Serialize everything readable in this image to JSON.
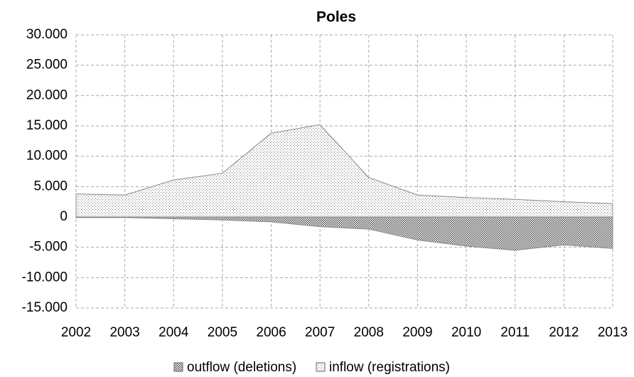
{
  "chart_data": {
    "type": "area",
    "title": "Poles",
    "categories": [
      "2002",
      "2003",
      "2004",
      "2005",
      "2006",
      "2007",
      "2008",
      "2009",
      "2010",
      "2011",
      "2012",
      "2013"
    ],
    "series": [
      {
        "name": "outflow (deletions)",
        "color": "#555555",
        "values": [
          -100,
          -100,
          -300,
          -500,
          -800,
          -1600,
          -2000,
          -3800,
          -4800,
          -5500,
          -4600,
          -5200
        ]
      },
      {
        "name": "inflow (registrations)",
        "color": "#777777",
        "values": [
          3800,
          3600,
          6100,
          7200,
          13800,
          15200,
          6500,
          3600,
          3200,
          2900,
          2500,
          2200
        ]
      }
    ],
    "ylim": [
      -15000,
      30000
    ],
    "yticks": [
      {
        "value": -15000,
        "label": "-15.000"
      },
      {
        "value": -10000,
        "label": "-10.000"
      },
      {
        "value": -5000,
        "label": "-5.000"
      },
      0,
      {
        "value": 5000,
        "label": "5.000"
      },
      {
        "value": 10000,
        "label": "10.000"
      },
      {
        "value": 15000,
        "label": "15.000"
      },
      {
        "value": 20000,
        "label": "20.000"
      },
      {
        "value": 25000,
        "label": "25.000"
      },
      {
        "value": 30000,
        "label": "30.000"
      }
    ],
    "grid": true,
    "legend": "bottom"
  }
}
